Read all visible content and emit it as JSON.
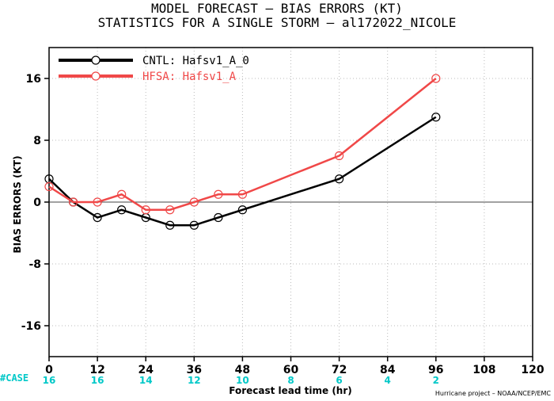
{
  "chart_data": {
    "type": "line",
    "title": "MODEL FORECAST – BIAS ERRORS (KT)",
    "subtitle": "STATISTICS FOR A SINGLE STORM – al172022_NICOLE",
    "xlabel": "Forecast lead time (hr)",
    "ylabel": "BIAS ERRORS (KT)",
    "xlim": [
      0,
      120
    ],
    "ylim": [
      -20,
      20
    ],
    "xticks": [
      0,
      12,
      24,
      36,
      48,
      60,
      72,
      84,
      96,
      108,
      120
    ],
    "yticks": [
      -16,
      -8,
      0,
      8,
      16
    ],
    "ytick_labels": [
      "-16",
      "-8",
      "0",
      "8",
      "16"
    ],
    "grid": true,
    "legend_position": "top-left",
    "series": [
      {
        "name": "CNTL: Hafsv1_A_0",
        "color": "#000000",
        "x": [
          0,
          6,
          12,
          18,
          24,
          30,
          36,
          42,
          48,
          72,
          96
        ],
        "y": [
          3,
          0,
          -2,
          -1,
          -2,
          -3,
          -3,
          -2,
          -1,
          3,
          11
        ]
      },
      {
        "name": "HFSA: Hafsv1_A",
        "color": "#f04848",
        "x": [
          0,
          6,
          12,
          18,
          24,
          30,
          36,
          42,
          48,
          72,
          96
        ],
        "y": [
          2,
          0,
          0,
          1,
          -1,
          -1,
          0,
          1,
          1,
          6,
          16
        ]
      }
    ],
    "case_counts": {
      "label": "#CASE",
      "x": [
        0,
        12,
        24,
        36,
        48,
        60,
        72,
        84,
        96
      ],
      "values": [
        "16",
        "16",
        "14",
        "12",
        "10",
        "8",
        "6",
        "4",
        "2"
      ],
      "color": "#00c8c8"
    },
    "credit": "Hurricane project – NOAA/NCEP/EMC"
  }
}
